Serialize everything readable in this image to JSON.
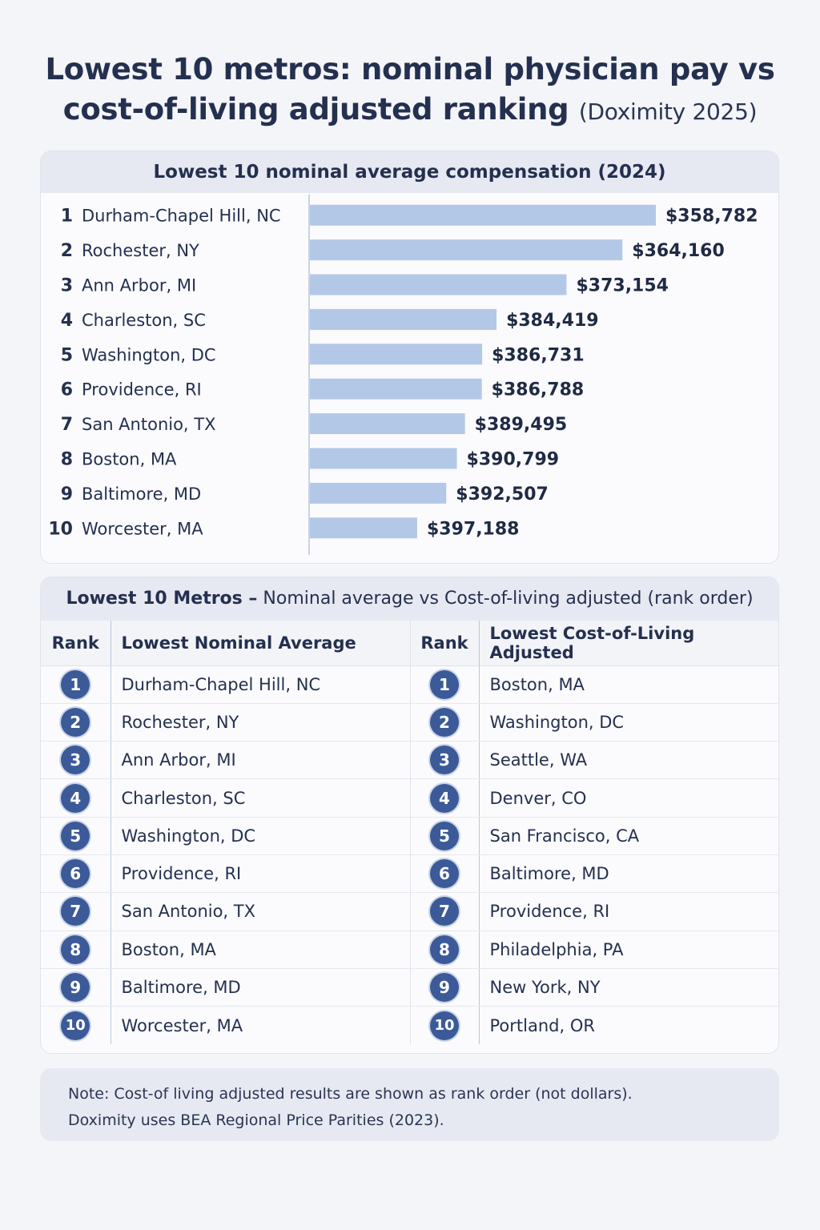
{
  "title": {
    "line1": "Lowest 10 metros: nominal physician pay vs",
    "line2": "cost-of-living adjusted ranking",
    "source": "(Doximity 2025)"
  },
  "chart_data": {
    "type": "bar",
    "orientation": "horizontal",
    "title": "Lowest 10 nominal average compensation (2024)",
    "categories": [
      "Durham-Chapel Hill, NC",
      "Rochester, NY",
      "Ann Arbor, MI",
      "Charleston, SC",
      "Washington, DC",
      "Providence, RI",
      "San Antonio, TX",
      "Boston, MA",
      "Baltimore, MD",
      "Worcester, MA"
    ],
    "ranks": [
      "1",
      "2",
      "3",
      "4",
      "5",
      "6",
      "7",
      "8",
      "9",
      "10"
    ],
    "values": [
      358782,
      364160,
      373154,
      384419,
      386731,
      386788,
      389495,
      390799,
      392507,
      397188
    ],
    "value_labels": [
      "$358,782",
      "$364,160",
      "$373,154",
      "$384,419",
      "$386,731",
      "$386,788",
      "$389,495",
      "$390,799",
      "$392,507",
      "$397,188"
    ],
    "bar_color": "#b3c8e6",
    "grid": false
  },
  "table": {
    "title_bold": "Lowest 10 Metros –",
    "title_rest": " Nominal average vs Cost-of-living adjusted (rank order)",
    "headers": [
      "Rank",
      "Lowest Nominal Average",
      "Rank",
      "Lowest Cost-of-Living Adjusted"
    ],
    "rows": [
      {
        "rank": "1",
        "nominal": "Durham-Chapel Hill, NC",
        "rank2": "1",
        "adjusted": "Boston, MA"
      },
      {
        "rank": "2",
        "nominal": "Rochester, NY",
        "rank2": "2",
        "adjusted": "Washington, DC"
      },
      {
        "rank": "3",
        "nominal": "Ann Arbor, MI",
        "rank2": "3",
        "adjusted": "Seattle, WA"
      },
      {
        "rank": "4",
        "nominal": "Charleston, SC",
        "rank2": "4",
        "adjusted": "Denver, CO"
      },
      {
        "rank": "5",
        "nominal": "Washington, DC",
        "rank2": "5",
        "adjusted": "San Francisco, CA"
      },
      {
        "rank": "6",
        "nominal": "Providence, RI",
        "rank2": "6",
        "adjusted": "Baltimore, MD"
      },
      {
        "rank": "7",
        "nominal": "San Antonio, TX",
        "rank2": "7",
        "adjusted": "Providence, RI"
      },
      {
        "rank": "8",
        "nominal": "Boston, MA",
        "rank2": "8",
        "adjusted": "Philadelphia, PA"
      },
      {
        "rank": "9",
        "nominal": "Baltimore, MD",
        "rank2": "9",
        "adjusted": "New York, NY"
      },
      {
        "rank": "10",
        "nominal": "Worcester, MA",
        "rank2": "10",
        "adjusted": "Portland, OR"
      }
    ],
    "badge_color": "#3c5a98"
  },
  "note": {
    "line1": "Note: Cost-of living adjusted results are shown as rank order (not dollars).",
    "line2": "Doximity uses BEA Regional Price Parities (2023)."
  }
}
